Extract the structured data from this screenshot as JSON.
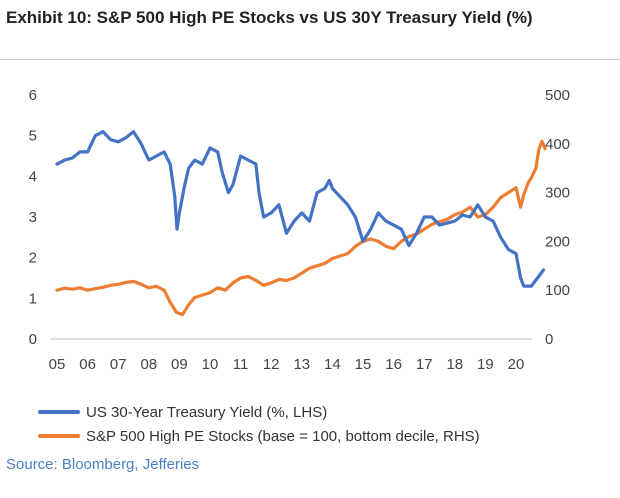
{
  "header": {
    "title": "Exhibit 10: S&P 500 High PE Stocks vs US 30Y Treasury Yield (%)"
  },
  "footer": {
    "source": "Source: Bloomberg, Jefferies"
  },
  "chart_data": {
    "type": "line",
    "title": "Exhibit 10: S&P 500 High PE Stocks vs US 30Y Treasury Yield (%)",
    "x_tick_labels": [
      "05",
      "06",
      "07",
      "08",
      "09",
      "10",
      "11",
      "12",
      "13",
      "14",
      "15",
      "16",
      "17",
      "18",
      "19",
      "20"
    ],
    "y_left": {
      "ticks": [
        "0",
        "1",
        "2",
        "3",
        "4",
        "5",
        "6"
      ],
      "ylim": [
        0,
        6
      ]
    },
    "y_right": {
      "ticks": [
        "0",
        "100",
        "200",
        "300",
        "400",
        "500"
      ],
      "ylim": [
        0,
        500
      ]
    },
    "grid": false,
    "legend_position": "bottom",
    "series": [
      {
        "name": "US 30-Year Treasury Yield (%, LHS)",
        "axis": "left",
        "color": "#4472c4",
        "points": [
          [
            2005.0,
            4.3
          ],
          [
            2005.25,
            4.4
          ],
          [
            2005.5,
            4.45
          ],
          [
            2005.75,
            4.6
          ],
          [
            2006.0,
            4.6
          ],
          [
            2006.25,
            5.0
          ],
          [
            2006.5,
            5.1
          ],
          [
            2006.75,
            4.9
          ],
          [
            2007.0,
            4.85
          ],
          [
            2007.25,
            4.95
          ],
          [
            2007.5,
            5.1
          ],
          [
            2007.75,
            4.8
          ],
          [
            2008.0,
            4.4
          ],
          [
            2008.25,
            4.5
          ],
          [
            2008.5,
            4.6
          ],
          [
            2008.7,
            4.3
          ],
          [
            2008.85,
            3.5
          ],
          [
            2008.92,
            2.7
          ],
          [
            2009.0,
            3.1
          ],
          [
            2009.15,
            3.7
          ],
          [
            2009.3,
            4.2
          ],
          [
            2009.5,
            4.4
          ],
          [
            2009.75,
            4.3
          ],
          [
            2010.0,
            4.7
          ],
          [
            2010.25,
            4.6
          ],
          [
            2010.4,
            4.1
          ],
          [
            2010.6,
            3.6
          ],
          [
            2010.75,
            3.8
          ],
          [
            2011.0,
            4.5
          ],
          [
            2011.25,
            4.4
          ],
          [
            2011.5,
            4.3
          ],
          [
            2011.6,
            3.6
          ],
          [
            2011.75,
            3.0
          ],
          [
            2012.0,
            3.1
          ],
          [
            2012.25,
            3.3
          ],
          [
            2012.5,
            2.6
          ],
          [
            2012.75,
            2.9
          ],
          [
            2013.0,
            3.1
          ],
          [
            2013.25,
            2.9
          ],
          [
            2013.5,
            3.6
          ],
          [
            2013.75,
            3.7
          ],
          [
            2013.9,
            3.9
          ],
          [
            2014.0,
            3.7
          ],
          [
            2014.25,
            3.5
          ],
          [
            2014.5,
            3.3
          ],
          [
            2014.75,
            3.0
          ],
          [
            2015.0,
            2.4
          ],
          [
            2015.25,
            2.7
          ],
          [
            2015.5,
            3.1
          ],
          [
            2015.75,
            2.9
          ],
          [
            2016.0,
            2.8
          ],
          [
            2016.25,
            2.7
          ],
          [
            2016.5,
            2.3
          ],
          [
            2016.75,
            2.6
          ],
          [
            2017.0,
            3.0
          ],
          [
            2017.25,
            3.0
          ],
          [
            2017.5,
            2.8
          ],
          [
            2017.75,
            2.85
          ],
          [
            2018.0,
            2.9
          ],
          [
            2018.25,
            3.05
          ],
          [
            2018.5,
            3.0
          ],
          [
            2018.75,
            3.3
          ],
          [
            2019.0,
            3.0
          ],
          [
            2019.25,
            2.9
          ],
          [
            2019.5,
            2.5
          ],
          [
            2019.75,
            2.2
          ],
          [
            2020.0,
            2.1
          ],
          [
            2020.15,
            1.5
          ],
          [
            2020.25,
            1.3
          ],
          [
            2020.5,
            1.3
          ],
          [
            2020.75,
            1.55
          ],
          [
            2020.9,
            1.7
          ]
        ]
      },
      {
        "name": "S&P 500 High PE Stocks (base = 100, bottom decile, RHS)",
        "axis": "right",
        "color": "#ed7d31",
        "points": [
          [
            2005.0,
            100
          ],
          [
            2005.25,
            104
          ],
          [
            2005.5,
            102
          ],
          [
            2005.75,
            105
          ],
          [
            2006.0,
            100
          ],
          [
            2006.25,
            103
          ],
          [
            2006.5,
            106
          ],
          [
            2006.75,
            110
          ],
          [
            2007.0,
            112
          ],
          [
            2007.25,
            116
          ],
          [
            2007.5,
            118
          ],
          [
            2007.75,
            112
          ],
          [
            2008.0,
            105
          ],
          [
            2008.25,
            108
          ],
          [
            2008.5,
            100
          ],
          [
            2008.7,
            75
          ],
          [
            2008.9,
            55
          ],
          [
            2009.1,
            50
          ],
          [
            2009.3,
            70
          ],
          [
            2009.5,
            85
          ],
          [
            2009.75,
            90
          ],
          [
            2010.0,
            95
          ],
          [
            2010.25,
            105
          ],
          [
            2010.5,
            100
          ],
          [
            2010.75,
            115
          ],
          [
            2011.0,
            125
          ],
          [
            2011.25,
            128
          ],
          [
            2011.5,
            120
          ],
          [
            2011.75,
            110
          ],
          [
            2012.0,
            115
          ],
          [
            2012.25,
            122
          ],
          [
            2012.5,
            120
          ],
          [
            2012.75,
            125
          ],
          [
            2013.0,
            135
          ],
          [
            2013.25,
            145
          ],
          [
            2013.5,
            150
          ],
          [
            2013.75,
            155
          ],
          [
            2014.0,
            165
          ],
          [
            2014.25,
            170
          ],
          [
            2014.5,
            175
          ],
          [
            2014.75,
            190
          ],
          [
            2015.0,
            200
          ],
          [
            2015.25,
            205
          ],
          [
            2015.5,
            200
          ],
          [
            2015.75,
            190
          ],
          [
            2016.0,
            185
          ],
          [
            2016.25,
            200
          ],
          [
            2016.5,
            210
          ],
          [
            2016.75,
            215
          ],
          [
            2017.0,
            225
          ],
          [
            2017.25,
            235
          ],
          [
            2017.5,
            240
          ],
          [
            2017.75,
            245
          ],
          [
            2018.0,
            255
          ],
          [
            2018.25,
            260
          ],
          [
            2018.5,
            270
          ],
          [
            2018.75,
            250
          ],
          [
            2019.0,
            255
          ],
          [
            2019.25,
            270
          ],
          [
            2019.5,
            290
          ],
          [
            2019.75,
            300
          ],
          [
            2020.0,
            310
          ],
          [
            2020.15,
            270
          ],
          [
            2020.25,
            295
          ],
          [
            2020.4,
            320
          ],
          [
            2020.5,
            330
          ],
          [
            2020.65,
            350
          ],
          [
            2020.75,
            390
          ],
          [
            2020.85,
            405
          ],
          [
            2020.95,
            390
          ]
        ]
      }
    ]
  }
}
